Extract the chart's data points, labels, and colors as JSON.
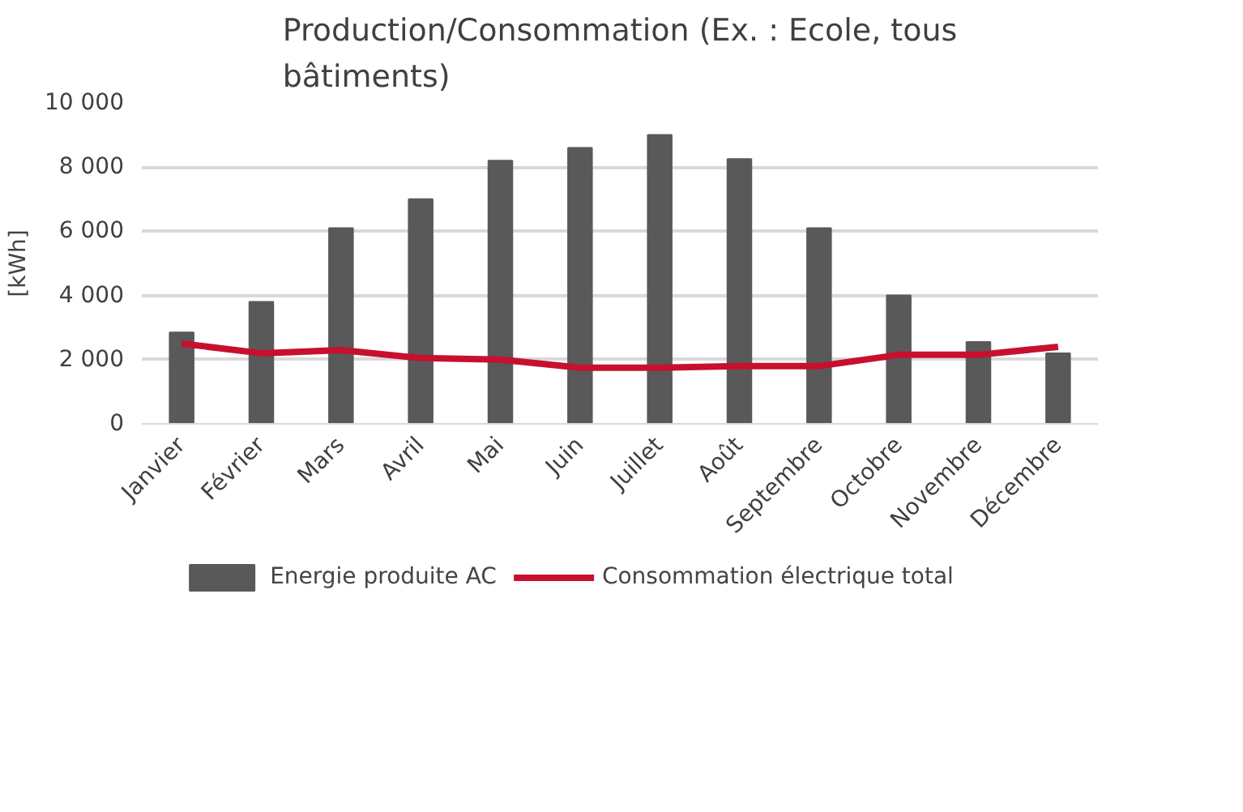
{
  "chart_data": {
    "type": "bar",
    "title": "Production/Consommation (Ex. : Ecole, tous\nbâtiments)",
    "ylabel": "[kWh]",
    "categories": [
      "Janvier",
      "Février",
      "Mars",
      "Avril",
      "Mai",
      "Juin",
      "Juillet",
      "Août",
      "Septembre",
      "Octobre",
      "Novembre",
      "Décembre"
    ],
    "series": [
      {
        "name": "Energie produite AC",
        "color": "#595959",
        "values": [
          2850,
          3800,
          6100,
          7000,
          8200,
          8600,
          9000,
          8250,
          6100,
          4000,
          2550,
          2200
        ]
      },
      {
        "name": "Consommation électrique total",
        "color": "#c8102e",
        "type": "line",
        "values": [
          2500,
          2200,
          2300,
          2050,
          2000,
          1750,
          1750,
          1800,
          1800,
          2150,
          2150,
          2400
        ]
      }
    ],
    "ylim": [
      0,
      10000
    ],
    "yticks": [
      {
        "value": 0,
        "label": "0"
      },
      {
        "value": 2000,
        "label": "2 000"
      },
      {
        "value": 4000,
        "label": "4 000"
      },
      {
        "value": 6000,
        "label": "6 000"
      },
      {
        "value": 8000,
        "label": "8 000"
      },
      {
        "value": 10000,
        "label": "10 000"
      }
    ],
    "grid": "y",
    "legend": "bottom",
    "line_style": "solid"
  }
}
